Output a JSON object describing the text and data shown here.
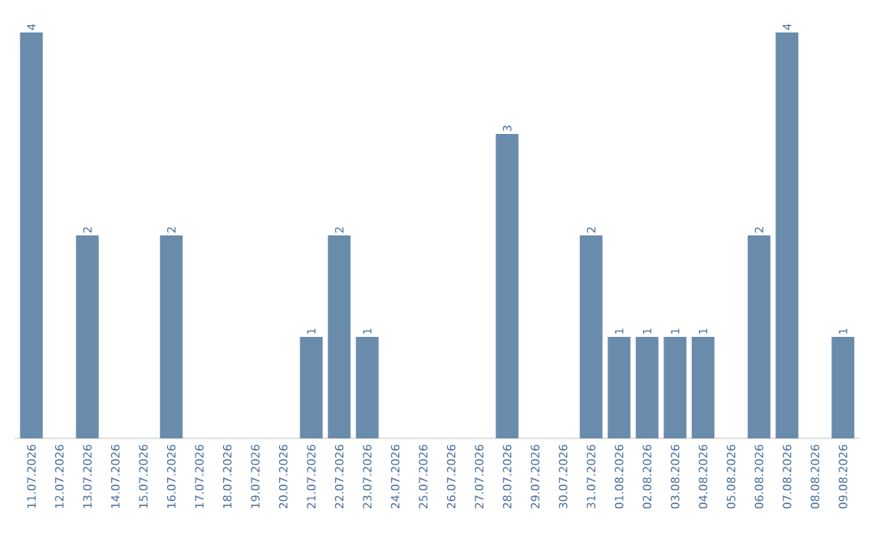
{
  "chart_data": {
    "type": "bar",
    "categories": [
      "11.07.2026",
      "12.07.2026",
      "13.07.2026",
      "14.07.2026",
      "15.07.2026",
      "16.07.2026",
      "17.07.2026",
      "18.07.2026",
      "19.07.2026",
      "20.07.2026",
      "21.07.2026",
      "22.07.2026",
      "23.07.2026",
      "24.07.2026",
      "25.07.2026",
      "26.07.2026",
      "27.07.2026",
      "28.07.2026",
      "29.07.2026",
      "30.07.2026",
      "31.07.2026",
      "01.08.2026",
      "02.08.2026",
      "03.08.2026",
      "04.08.2026",
      "05.08.2026",
      "06.08.2026",
      "07.08.2026",
      "08.08.2026",
      "09.08.2026"
    ],
    "values": [
      4,
      0,
      2,
      0,
      0,
      2,
      0,
      0,
      0,
      0,
      1,
      2,
      1,
      0,
      0,
      0,
      0,
      3,
      0,
      0,
      2,
      1,
      1,
      1,
      1,
      0,
      2,
      4,
      0,
      1
    ],
    "value_labels": [
      "4",
      null,
      "2",
      null,
      null,
      "2",
      null,
      null,
      null,
      null,
      "1",
      "2",
      "1",
      null,
      null,
      null,
      null,
      "3",
      null,
      null,
      "2",
      "1",
      "1",
      "1",
      "1",
      null,
      "2",
      "4",
      null,
      "1"
    ],
    "color": "#6a8cac"
  }
}
